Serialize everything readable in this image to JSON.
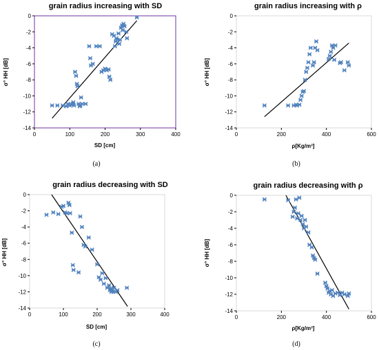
{
  "chart_data": [
    {
      "type": "scatter",
      "title": "grain radius increasing with SD",
      "xlabel": "SD [cm]",
      "ylabel": "σ° HH [dB]",
      "caption": "(a)",
      "xlim": [
        0,
        400
      ],
      "ylim": [
        -14,
        0
      ],
      "xticks": [
        "0",
        "100",
        "200",
        "300",
        "400"
      ],
      "yticks": [
        "0",
        "-2",
        "-4",
        "-6",
        "-8",
        "-10",
        "-12",
        "-14"
      ],
      "x": [
        50,
        65,
        80,
        90,
        95,
        100,
        105,
        108,
        110,
        112,
        115,
        118,
        120,
        122,
        125,
        128,
        130,
        132,
        135,
        145,
        155,
        158,
        160,
        165,
        175,
        185,
        190,
        195,
        200,
        205,
        210,
        212,
        215,
        220,
        225,
        228,
        230,
        232,
        235,
        238,
        240,
        242,
        245,
        248,
        250,
        252,
        255,
        260,
        262,
        290
      ],
      "y": [
        -11.2,
        -11.2,
        -11.2,
        -11.3,
        -11.0,
        -11.2,
        -11.1,
        -11.0,
        -10.8,
        -11.2,
        -7.0,
        -7.5,
        -8.5,
        -8.8,
        -11.0,
        -11.3,
        -11.2,
        -10.2,
        -11.0,
        -11.0,
        -3.8,
        -5.3,
        -6.2,
        -6.0,
        -3.8,
        -3.8,
        -7.0,
        -6.8,
        -6.6,
        -6.8,
        -6.7,
        -7.6,
        -8.0,
        -2.3,
        -2.5,
        -3.8,
        -3.2,
        -2.8,
        -3.0,
        -2.2,
        -3.5,
        -3.0,
        -1.5,
        -1.2,
        -1.8,
        -1.0,
        -1.3,
        -2.0,
        -2.8,
        -0.2
      ],
      "fit": {
        "x": [
          50,
          290
        ],
        "y": [
          -12.8,
          -0.6
        ]
      },
      "marker_color": "#4f81bd",
      "line_color": "#000000",
      "frame_color": "#7030a0"
    },
    {
      "type": "scatter",
      "title": "grain radius increasing with ρ",
      "xlabel": "ρ[Kg/m³]",
      "ylabel": "σ° HH [dB]",
      "caption": "(b)",
      "xlim": [
        0,
        600
      ],
      "ylim": [
        -14,
        0
      ],
      "xticks": [
        "0",
        "200",
        "400",
        "600"
      ],
      "yticks": [
        "0",
        "-2",
        "-4",
        "-6",
        "-8",
        "-10",
        "-12",
        "-14"
      ],
      "x": [
        125,
        230,
        255,
        265,
        270,
        280,
        285,
        290,
        295,
        300,
        305,
        310,
        315,
        320,
        325,
        330,
        340,
        345,
        350,
        355,
        360,
        410,
        415,
        420,
        425,
        430,
        435,
        440,
        460,
        465,
        480,
        495,
        500
      ],
      "y": [
        -11.2,
        -11.2,
        -11.2,
        -11.1,
        -11.2,
        -11.1,
        -10.5,
        -10.0,
        -9.5,
        -9.4,
        -8.0,
        -7.0,
        -6.5,
        -5.8,
        -4.8,
        -4.0,
        -6.2,
        -5.8,
        -4.0,
        -3.2,
        -4.3,
        -5.4,
        -5.0,
        -4.5,
        -3.7,
        -4.0,
        -5.5,
        -3.7,
        -5.9,
        -5.8,
        -6.8,
        -5.8,
        -6.2
      ],
      "fit": {
        "x": [
          125,
          500
        ],
        "y": [
          -12.6,
          -3.4
        ]
      },
      "marker_color": "#4f81bd",
      "line_color": "#000000",
      "frame_color": "#d9d9d9"
    },
    {
      "type": "scatter",
      "title": "grain radius decreasing with SD",
      "xlabel": "SD [cm]",
      "ylabel": "σ° HH [dB]",
      "caption": "(c)",
      "xlim": [
        0,
        400
      ],
      "ylim": [
        -14,
        0
      ],
      "xticks": [
        "0",
        "100",
        "200",
        "300",
        "400"
      ],
      "yticks": [
        "0",
        "-2",
        "-4",
        "-6",
        "-8",
        "-10",
        "-12",
        "-14"
      ],
      "x": [
        50,
        70,
        85,
        95,
        100,
        105,
        110,
        115,
        118,
        120,
        125,
        128,
        130,
        145,
        150,
        155,
        160,
        165,
        175,
        185,
        200,
        205,
        210,
        215,
        220,
        225,
        230,
        235,
        238,
        240,
        242,
        245,
        248,
        250,
        255,
        260,
        288
      ],
      "y": [
        -2.5,
        -2.2,
        -2.4,
        -1.5,
        -1.4,
        -2.2,
        -2.3,
        -1.0,
        -1.3,
        -2.3,
        -4.7,
        -8.7,
        -9.3,
        -9.6,
        -2.7,
        -4.0,
        -6.2,
        -6.4,
        -5.3,
        -6.8,
        -8.6,
        -10.2,
        -10.5,
        -9.7,
        -11.0,
        -10.3,
        -11.5,
        -11.2,
        -11.8,
        -11.6,
        -12.0,
        -11.7,
        -12.0,
        -11.5,
        -12.0,
        -11.8,
        -11.5
      ],
      "fit": {
        "x": [
          65,
          290
        ],
        "y": [
          0,
          -13.8
        ]
      },
      "marker_color": "#4f81bd",
      "line_color": "#000000",
      "frame_color": "#d9d9d9"
    },
    {
      "type": "scatter",
      "title": "grain radius decreasing with ρ",
      "xlabel": "ρ[Kg/m³]",
      "ylabel": "σ° HH [dB]",
      "caption": "(d)",
      "xlim": [
        0,
        600
      ],
      "ylim": [
        -14,
        0
      ],
      "xticks": [
        "0",
        "200",
        "400",
        "600"
      ],
      "yticks": [
        "0",
        "-2",
        "-4",
        "-6",
        "-8",
        "-10",
        "-12",
        "-14"
      ],
      "x": [
        125,
        230,
        250,
        255,
        260,
        265,
        270,
        275,
        280,
        285,
        290,
        295,
        300,
        305,
        310,
        320,
        325,
        335,
        340,
        345,
        350,
        360,
        395,
        400,
        405,
        410,
        415,
        420,
        425,
        430,
        440,
        450,
        460,
        470,
        480,
        495,
        500
      ],
      "y": [
        -0.5,
        -0.6,
        -2.6,
        -2.0,
        -1.5,
        -0.5,
        -2.8,
        -2.2,
        -0.3,
        -3.0,
        -2.5,
        -3.5,
        -4.0,
        -3.0,
        -3.8,
        -4.5,
        -6.0,
        -6.3,
        -7.3,
        -7.6,
        -7.8,
        -9.5,
        -10.6,
        -11.0,
        -11.3,
        -11.8,
        -11.6,
        -12.0,
        -11.5,
        -12.2,
        -11.9,
        -11.8,
        -12.1,
        -11.8,
        -12.0,
        -12.2,
        -11.9
      ],
      "fit": {
        "x": [
          220,
          500
        ],
        "y": [
          0,
          -13.8
        ]
      },
      "marker_color": "#4f81bd",
      "line_color": "#000000",
      "frame_color": "#d9d9d9"
    }
  ]
}
